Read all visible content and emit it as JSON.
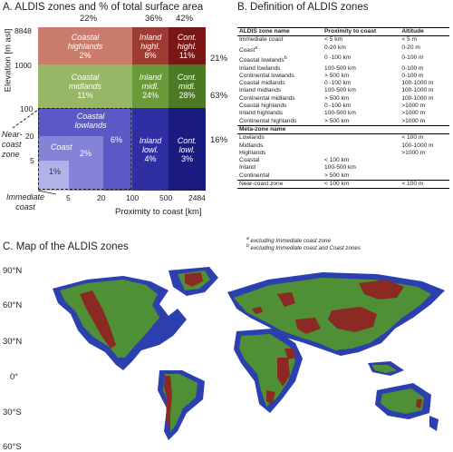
{
  "panel_a": {
    "title": "A. ALDIS zones and % of total surface area",
    "top_percents": [
      "22%",
      "36%",
      "42%"
    ],
    "right_percents": [
      "21%",
      "63%",
      "16%"
    ],
    "y_axis_label": "Elevation [m asl]",
    "y_ticks": [
      "8848",
      "1000",
      "100",
      "20",
      "5"
    ],
    "x_axis_label": "Proximity to coast [km]",
    "x_ticks": [
      "5",
      "20",
      "100",
      "500",
      "2484"
    ],
    "cells": {
      "coastal_highlands": {
        "name": "Coastal highlands",
        "pct": "2%"
      },
      "inland_highlands": {
        "name": "Inland highl.",
        "pct": "8%"
      },
      "continental_highlands": {
        "name": "Cont. highl.",
        "pct": "11%"
      },
      "coastal_midlands": {
        "name": "Coastal midlands",
        "pct": "11%"
      },
      "inland_midlands": {
        "name": "Inland midl.",
        "pct": "24%"
      },
      "continental_midlands": {
        "name": "Cont. midl.",
        "pct": "28%"
      },
      "coastal_lowlands": {
        "name": "Coastal lowlands",
        "pct": "6%"
      },
      "inland_lowlands": {
        "name": "Inland lowl.",
        "pct": "4%"
      },
      "continental_lowlands": {
        "name": "Cont. lowl.",
        "pct": "3%"
      },
      "coast": {
        "name": "Coast",
        "pct": "2%"
      },
      "immediate_coast": {
        "pct": "1%"
      }
    },
    "near_coast_zone_label": "Near-coast zone",
    "immediate_coast_label": "Immediate coast",
    "colors": {
      "highlands": [
        "#c97c6c",
        "#9e3b33",
        "#7a1616"
      ],
      "midlands": [
        "#96b765",
        "#6b9a3a",
        "#4b7a23"
      ],
      "lowlands": [
        "#5a59c6",
        "#2f2fa4",
        "#1b1b7f"
      ],
      "coast": "#8583d8",
      "immediate_coast": "#b2b1e8"
    }
  },
  "panel_b": {
    "title": "B. Definition of ALDIS zones",
    "headers": [
      "ALDIS zone name",
      "Proximity to coast",
      "Altitude"
    ],
    "rows": [
      {
        "name": "Immediate coast",
        "sup": "",
        "prox": "< 5 km",
        "alt": "< 5 m"
      },
      {
        "name": "Coast",
        "sup": "a",
        "prox": "0-20 km",
        "alt": "0-20 m"
      },
      {
        "name": "Coastal lowlands",
        "sup": "b",
        "prox": "0 -100 km",
        "alt": "0-100 m"
      },
      {
        "name": "Inland lowlands",
        "sup": "",
        "prox": "100-500 km",
        "alt": "0-100 m"
      },
      {
        "name": "Continental lowlands",
        "sup": "",
        "prox": "> 500 km",
        "alt": "0-100 m"
      },
      {
        "name": "Coastal midlands",
        "sup": "",
        "prox": "0 -100 km",
        "alt": "100-1000 m"
      },
      {
        "name": "Inland midlands",
        "sup": "",
        "prox": "100-500 km",
        "alt": "100-1000 m"
      },
      {
        "name": "Continental midlands",
        "sup": "",
        "prox": "> 500 km",
        "alt": "100-1000 m"
      },
      {
        "name": "Coastal highlands",
        "sup": "",
        "prox": "0 -100 km",
        "alt": ">1000 m"
      },
      {
        "name": "Inland highlands",
        "sup": "",
        "prox": "100-500 km",
        "alt": ">1000 m"
      },
      {
        "name": "Continental highlands",
        "sup": "",
        "prox": "> 500 km",
        "alt": ">1000 m"
      }
    ],
    "meta_header": "Meta-zone name",
    "meta_rows": [
      {
        "name": "Lowlands",
        "prox": "",
        "alt": "< 100 m"
      },
      {
        "name": "Midlands",
        "prox": "",
        "alt": "100-1000 m"
      },
      {
        "name": "Highlands",
        "prox": "",
        "alt": ">1000 m"
      },
      {
        "name": "Coastal",
        "prox": "< 100 km",
        "alt": ""
      },
      {
        "name": "Inland",
        "prox": "100-500 km",
        "alt": ""
      },
      {
        "name": "Continental",
        "prox": "> 500 km",
        "alt": ""
      }
    ],
    "near_coast_row": {
      "name": "Near-coast zone",
      "prox": "< 100 km",
      "alt": "< 100 m"
    },
    "footnotes": [
      {
        "sup": "a",
        "text": " excluding Immediate coast zone"
      },
      {
        "sup": "b",
        "text": " excluding Immediate coast and Coast zones"
      }
    ]
  },
  "panel_c": {
    "title": "C. Map of the ALDIS zones",
    "lat_labels": [
      "90°N",
      "60°N",
      "30°N",
      "0°",
      "30°S",
      "60°S"
    ],
    "colors": {
      "lowland": "#2b3fae",
      "midland": "#4f8f35",
      "highland": "#8a2a22"
    }
  }
}
